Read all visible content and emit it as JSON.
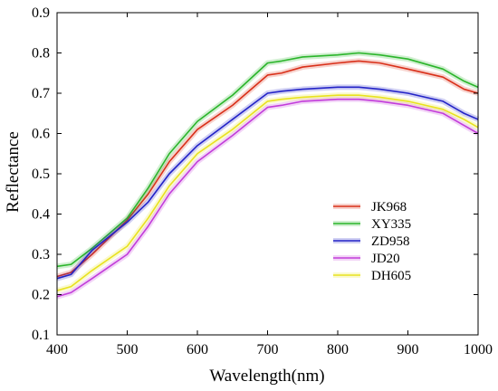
{
  "chart_data": {
    "type": "line",
    "title": "",
    "xlabel": "Wavelength(nm)",
    "ylabel": "Reflectance",
    "xlim": [
      400,
      1000
    ],
    "ylim": [
      0.1,
      0.9
    ],
    "xticks": [
      400,
      500,
      600,
      700,
      800,
      900,
      1000
    ],
    "yticks": [
      0.1,
      0.2,
      0.3,
      0.4,
      0.5,
      0.6,
      0.7,
      0.8,
      0.9
    ],
    "grid": false,
    "legend_position": "right",
    "x": [
      400,
      420,
      450,
      500,
      530,
      560,
      600,
      650,
      700,
      720,
      750,
      800,
      830,
      860,
      900,
      950,
      980,
      1000
    ],
    "series": [
      {
        "name": "JK968",
        "color": "#d9301a",
        "values": [
          0.245,
          0.255,
          0.3,
          0.385,
          0.45,
          0.53,
          0.61,
          0.67,
          0.745,
          0.75,
          0.765,
          0.775,
          0.78,
          0.775,
          0.76,
          0.74,
          0.71,
          0.7
        ]
      },
      {
        "name": "XY335",
        "color": "#2bb52b",
        "values": [
          0.27,
          0.275,
          0.315,
          0.39,
          0.465,
          0.55,
          0.63,
          0.695,
          0.775,
          0.78,
          0.79,
          0.795,
          0.8,
          0.795,
          0.785,
          0.76,
          0.73,
          0.715
        ]
      },
      {
        "name": "ZD958",
        "color": "#2323c7",
        "values": [
          0.24,
          0.25,
          0.31,
          0.38,
          0.43,
          0.5,
          0.57,
          0.635,
          0.7,
          0.705,
          0.71,
          0.715,
          0.715,
          0.71,
          0.7,
          0.68,
          0.65,
          0.635
        ]
      },
      {
        "name": "JD20",
        "color": "#c23cd9",
        "values": [
          0.195,
          0.205,
          0.24,
          0.3,
          0.37,
          0.45,
          0.53,
          0.595,
          0.665,
          0.67,
          0.68,
          0.685,
          0.685,
          0.68,
          0.67,
          0.65,
          0.62,
          0.6
        ]
      },
      {
        "name": "DH605",
        "color": "#e8e21f",
        "values": [
          0.21,
          0.22,
          0.26,
          0.32,
          0.39,
          0.47,
          0.55,
          0.61,
          0.68,
          0.685,
          0.69,
          0.695,
          0.695,
          0.69,
          0.68,
          0.66,
          0.635,
          0.615
        ]
      }
    ]
  }
}
